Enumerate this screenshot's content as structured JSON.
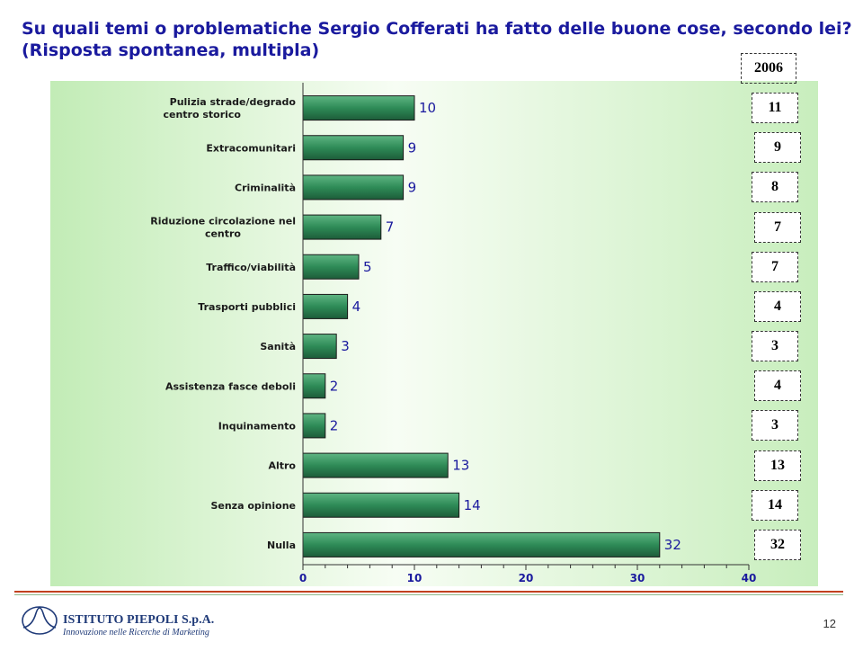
{
  "title": {
    "line1": "Su quali temi o problematiche Sergio Cofferati ha fatto delle buone cose, secondo lei?",
    "line2": "(Risposta spontanea, multipla)"
  },
  "chart_data": {
    "type": "bar",
    "orientation": "horizontal",
    "categories": [
      "Pulizia strade/degrado centro storico",
      "Extracomunitari",
      "Criminalità",
      "Riduzione circolazione nel centro",
      "Traffico/viabilità",
      "Trasporti pubblici",
      "Sanità",
      "Assistenza fasce deboli",
      "Inquinamento",
      "Altro",
      "Senza opinione",
      "Nulla"
    ],
    "category_lines": [
      [
        "Pulizia strade/degrado",
        "centro storico"
      ],
      [
        "Extracomunitari"
      ],
      [
        "Criminalità"
      ],
      [
        "Riduzione circolazione nel",
        "centro"
      ],
      [
        "Traffico/viabilità"
      ],
      [
        "Trasporti pubblici"
      ],
      [
        "Sanità"
      ],
      [
        "Assistenza fasce deboli"
      ],
      [
        "Inquinamento"
      ],
      [
        "Altro"
      ],
      [
        "Senza opinione"
      ],
      [
        "Nulla"
      ]
    ],
    "values": [
      10,
      9,
      9,
      7,
      5,
      4,
      3,
      2,
      2,
      13,
      14,
      32
    ],
    "xlim": [
      0,
      40
    ],
    "xticks": [
      0,
      10,
      20,
      30,
      40
    ],
    "comparison": {
      "label": "2006",
      "values": [
        11,
        9,
        8,
        7,
        7,
        4,
        3,
        4,
        3,
        13,
        14,
        32
      ]
    },
    "colors": {
      "bar": "#2e8b57",
      "bar_dark": "#1d5c39",
      "bar_light": "#5fb583",
      "plot_bg": "#d8f3cf",
      "value_label": "#1a1a9e"
    }
  },
  "footer": {
    "logo_name": "ISTITUTO PIEPOLI S.p.A.",
    "logo_tagline": "Innovazione nelle Ricerche di Marketing",
    "page_number": "12"
  }
}
